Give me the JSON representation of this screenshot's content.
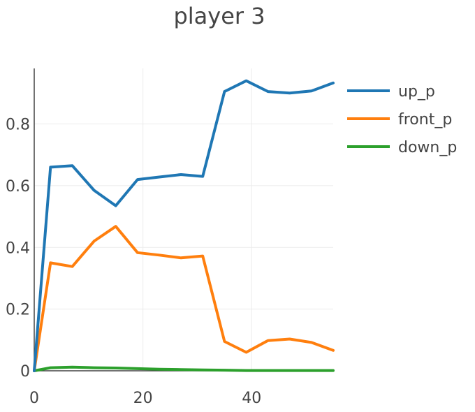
{
  "chart_data": {
    "type": "line",
    "title": "player 3",
    "xlabel": "",
    "ylabel": "",
    "xlim": [
      0,
      55
    ],
    "ylim": [
      0,
      0.98
    ],
    "x_ticks": [
      0,
      20,
      40
    ],
    "x_tick_labels": [
      "0",
      "20",
      "40"
    ],
    "y_ticks": [
      0,
      0.2,
      0.4,
      0.6,
      0.8
    ],
    "y_tick_labels": [
      "0",
      "0.2",
      "0.4",
      "0.6",
      "0.8"
    ],
    "grid": true,
    "legend_position": "top-right",
    "x": [
      0,
      3,
      7,
      11,
      15,
      19,
      23,
      27,
      31,
      35,
      39,
      43,
      47,
      51,
      55
    ],
    "series": [
      {
        "name": "up_p",
        "color": "#1f77b4",
        "values": [
          0.0,
          0.66,
          0.665,
          0.585,
          0.535,
          0.62,
          0.628,
          0.636,
          0.63,
          0.905,
          0.94,
          0.905,
          0.9,
          0.907,
          0.933
        ]
      },
      {
        "name": "front_p",
        "color": "#ff7f0e",
        "values": [
          0.0,
          0.35,
          0.338,
          0.42,
          0.468,
          0.383,
          0.375,
          0.366,
          0.372,
          0.095,
          0.06,
          0.098,
          0.103,
          0.092,
          0.066
        ]
      },
      {
        "name": "down_p",
        "color": "#2ca02c",
        "values": [
          0.0,
          0.01,
          0.012,
          0.01,
          0.009,
          0.007,
          0.005,
          0.004,
          0.003,
          0.002,
          0.001,
          0.001,
          0.001,
          0.001,
          0.001
        ]
      }
    ]
  }
}
